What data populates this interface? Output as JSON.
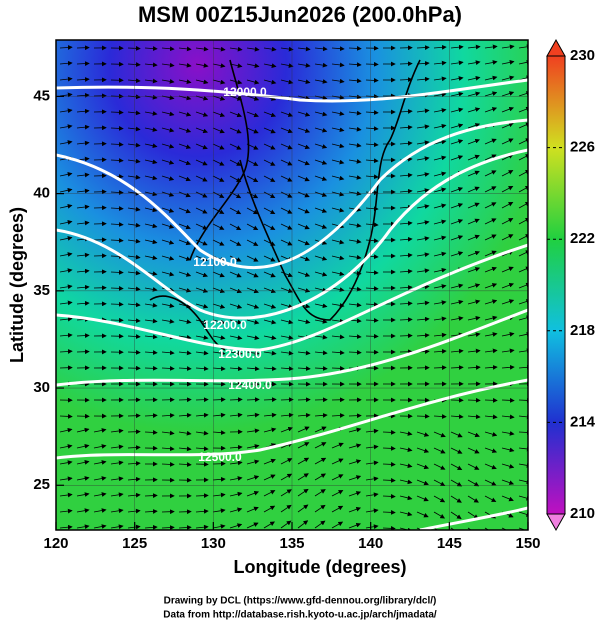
{
  "header": {
    "title": "MSM 00Z15Jun2026 (200.0hPa)"
  },
  "map": {
    "xlabel": "Longitude (degrees)",
    "ylabel": "Latitude  (degrees)",
    "xlim": [
      120,
      150
    ],
    "ylim": [
      22.7,
      47.9
    ],
    "xticks": [
      120,
      125,
      130,
      135,
      140,
      145,
      150
    ],
    "yticks": [
      25,
      30,
      35,
      40,
      45
    ],
    "colorbar": {
      "lim": [
        210,
        230
      ],
      "ticks": [
        210,
        214,
        218,
        222,
        226,
        230
      ]
    },
    "contour_labels": [
      "12000.0",
      "12100.0",
      "12200.0",
      "12300.0",
      "12400.0",
      "12500.0"
    ]
  },
  "footer": {
    "credits": [
      "Drawing by DCL (https://www.gfd-dennou.org/library/dcl/)",
      "Data from http://database.rish.kyoto-u.ac.jp/arch/jmadata/"
    ]
  }
}
